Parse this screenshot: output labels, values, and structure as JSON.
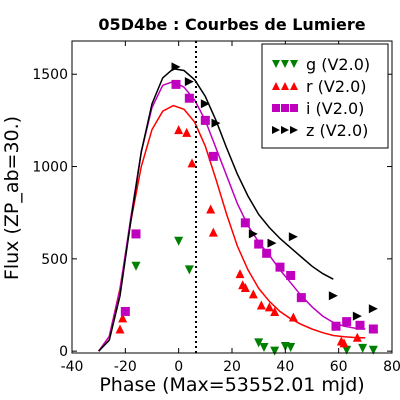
{
  "chart_data": {
    "type": "scatter",
    "title": "05D4be : Courbes de Lumiere",
    "xlabel": "Phase (Max=53552.01 mjd)",
    "ylabel": "Flux (ZP_ab=30.)",
    "xlim": [
      -40,
      80
    ],
    "ylim": [
      -10,
      1680
    ],
    "xticks": [
      -40,
      -20,
      0,
      20,
      40,
      60,
      80
    ],
    "yticks": [
      0,
      500,
      1000,
      1500
    ],
    "legend_position": "top-right",
    "vline_x": 6.5,
    "series": [
      {
        "name": "g (V2.0)",
        "color": "#008000",
        "marker": "triangle-down",
        "points": [
          [
            -16,
            460
          ],
          [
            0,
            595
          ],
          [
            4,
            440
          ],
          [
            30,
            45
          ],
          [
            32,
            20
          ],
          [
            36,
            0
          ],
          [
            40,
            25
          ],
          [
            42,
            20
          ],
          [
            63,
            5
          ],
          [
            69,
            15
          ],
          [
            73,
            5
          ]
        ],
        "curve": []
      },
      {
        "name": "r (V2.0)",
        "color": "#ff0000",
        "marker": "triangle-up",
        "points": [
          [
            -22,
            120
          ],
          [
            -21,
            180
          ],
          [
            0,
            1200
          ],
          [
            3,
            1185
          ],
          [
            5,
            1020
          ],
          [
            12,
            770
          ],
          [
            13,
            645
          ],
          [
            23,
            420
          ],
          [
            24,
            360
          ],
          [
            25,
            345
          ],
          [
            28,
            310
          ],
          [
            31,
            250
          ],
          [
            34,
            240
          ],
          [
            36,
            215
          ],
          [
            43,
            185
          ],
          [
            61,
            55
          ],
          [
            62,
            45
          ],
          [
            67,
            75
          ]
        ],
        "curve": [
          [
            -30,
            0
          ],
          [
            -26,
            80
          ],
          [
            -22,
            340
          ],
          [
            -18,
            700
          ],
          [
            -14,
            1000
          ],
          [
            -10,
            1200
          ],
          [
            -6,
            1300
          ],
          [
            -2,
            1330
          ],
          [
            2,
            1310
          ],
          [
            6,
            1240
          ],
          [
            10,
            1110
          ],
          [
            14,
            930
          ],
          [
            18,
            740
          ],
          [
            22,
            570
          ],
          [
            26,
            440
          ],
          [
            30,
            340
          ],
          [
            34,
            270
          ],
          [
            38,
            215
          ],
          [
            42,
            175
          ],
          [
            46,
            145
          ],
          [
            50,
            120
          ],
          [
            54,
            100
          ],
          [
            58,
            85
          ],
          [
            62,
            78
          ],
          [
            66,
            74
          ],
          [
            70,
            72
          ]
        ]
      },
      {
        "name": "i (V2.0)",
        "color": "#bf00bf",
        "marker": "square",
        "points": [
          [
            -20,
            215
          ],
          [
            -16,
            635
          ],
          [
            -1,
            1445
          ],
          [
            4,
            1370
          ],
          [
            10,
            1250
          ],
          [
            13,
            1055
          ],
          [
            25,
            695
          ],
          [
            30,
            580
          ],
          [
            33,
            530
          ],
          [
            38,
            455
          ],
          [
            42,
            410
          ],
          [
            46,
            290
          ],
          [
            59,
            135
          ],
          [
            63,
            160
          ],
          [
            68,
            140
          ],
          [
            73,
            120
          ]
        ],
        "curve": [
          [
            -30,
            0
          ],
          [
            -26,
            80
          ],
          [
            -22,
            330
          ],
          [
            -18,
            720
          ],
          [
            -14,
            1080
          ],
          [
            -10,
            1320
          ],
          [
            -6,
            1440
          ],
          [
            -2,
            1460
          ],
          [
            2,
            1430
          ],
          [
            6,
            1360
          ],
          [
            10,
            1250
          ],
          [
            14,
            1100
          ],
          [
            18,
            950
          ],
          [
            22,
            800
          ],
          [
            26,
            680
          ],
          [
            30,
            590
          ],
          [
            34,
            520
          ],
          [
            38,
            440
          ],
          [
            42,
            370
          ],
          [
            46,
            300
          ],
          [
            50,
            240
          ],
          [
            54,
            190
          ],
          [
            58,
            155
          ],
          [
            62,
            135
          ],
          [
            66,
            125
          ],
          [
            70,
            120
          ]
        ]
      },
      {
        "name": "z (V2.0)",
        "color": "#000000",
        "marker": "triangle-right",
        "points": [
          [
            -1,
            1540
          ],
          [
            4,
            1460
          ],
          [
            10,
            1340
          ],
          [
            14,
            1235
          ],
          [
            28,
            635
          ],
          [
            35,
            585
          ],
          [
            43,
            620
          ],
          [
            58,
            300
          ],
          [
            67,
            190
          ],
          [
            73,
            230
          ]
        ],
        "curve": [
          [
            -30,
            0
          ],
          [
            -26,
            60
          ],
          [
            -22,
            300
          ],
          [
            -18,
            700
          ],
          [
            -14,
            1080
          ],
          [
            -10,
            1340
          ],
          [
            -6,
            1480
          ],
          [
            -2,
            1530
          ],
          [
            2,
            1520
          ],
          [
            6,
            1470
          ],
          [
            10,
            1380
          ],
          [
            14,
            1250
          ],
          [
            18,
            1100
          ],
          [
            22,
            960
          ],
          [
            26,
            840
          ],
          [
            30,
            740
          ],
          [
            34,
            670
          ],
          [
            38,
            610
          ],
          [
            42,
            560
          ],
          [
            46,
            510
          ],
          [
            50,
            460
          ],
          [
            54,
            420
          ],
          [
            58,
            390
          ]
        ]
      }
    ]
  }
}
